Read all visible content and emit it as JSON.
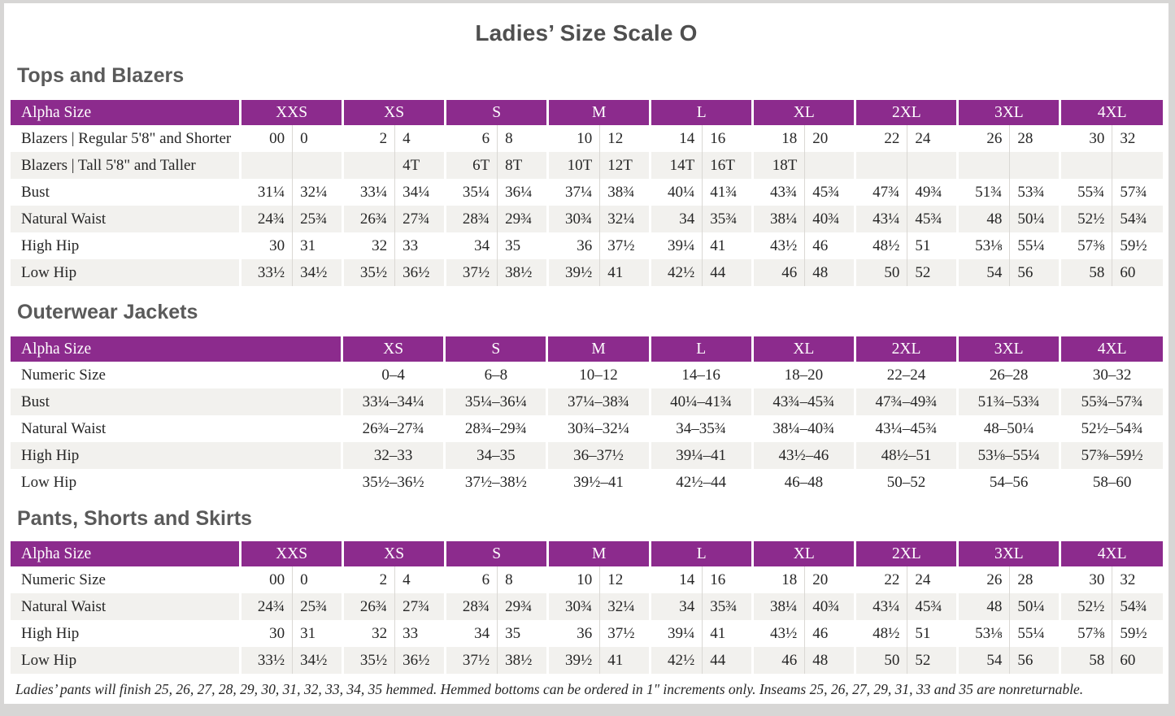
{
  "page": {
    "title": "Ladies’ Size Scale O",
    "footnote": "Ladies’ pants will finish 25, 26, 27, 28, 29, 30, 31, 32, 33, 34, 35 hemmed. Hemmed bottoms can be ordered in 1\" increments only. Inseams 25, 26, 27, 29, 31, 33 and 35 are nonreturnable."
  },
  "colors": {
    "header_purple": "#8c2b8d",
    "row_alt": "#f2f1ee",
    "page_frame": "#d7d6d5",
    "text": "#262626"
  },
  "tables": [
    {
      "id": "tops-and-blazers",
      "section_title": "Tops and Blazers",
      "header_label": "Alpha Size",
      "paired": true,
      "sizes": [
        "XXS",
        "XS",
        "S",
        "M",
        "L",
        "XL",
        "2XL",
        "3XL",
        "4XL"
      ],
      "rows": [
        {
          "label": "Blazers  |  Regular 5'8\" and Shorter",
          "values": [
            [
              "00",
              "0"
            ],
            [
              "2",
              "4"
            ],
            [
              "6",
              "8"
            ],
            [
              "10",
              "12"
            ],
            [
              "14",
              "16"
            ],
            [
              "18",
              "20"
            ],
            [
              "22",
              "24"
            ],
            [
              "26",
              "28"
            ],
            [
              "30",
              "32"
            ]
          ]
        },
        {
          "label": "Blazers  |  Tall 5'8\" and Taller",
          "values": [
            [
              "",
              ""
            ],
            [
              "",
              "4T"
            ],
            [
              "6T",
              "8T"
            ],
            [
              "10T",
              "12T"
            ],
            [
              "14T",
              "16T"
            ],
            [
              "18T",
              ""
            ],
            [
              "",
              ""
            ],
            [
              "",
              ""
            ],
            [
              "",
              ""
            ]
          ]
        },
        {
          "label": "Bust",
          "values": [
            [
              "31¼",
              "32¼"
            ],
            [
              "33¼",
              "34¼"
            ],
            [
              "35¼",
              "36¼"
            ],
            [
              "37¼",
              "38¾"
            ],
            [
              "40¼",
              "41¾"
            ],
            [
              "43¾",
              "45¾"
            ],
            [
              "47¾",
              "49¾"
            ],
            [
              "51¾",
              "53¾"
            ],
            [
              "55¾",
              "57¾"
            ]
          ]
        },
        {
          "label": "Natural Waist",
          "values": [
            [
              "24¾",
              "25¾"
            ],
            [
              "26¾",
              "27¾"
            ],
            [
              "28¾",
              "29¾"
            ],
            [
              "30¾",
              "32¼"
            ],
            [
              "34",
              "35¾"
            ],
            [
              "38¼",
              "40¾"
            ],
            [
              "43¼",
              "45¾"
            ],
            [
              "48",
              "50¼"
            ],
            [
              "52½",
              "54¾"
            ]
          ]
        },
        {
          "label": "High Hip",
          "values": [
            [
              "30",
              "31"
            ],
            [
              "32",
              "33"
            ],
            [
              "34",
              "35"
            ],
            [
              "36",
              "37½"
            ],
            [
              "39¼",
              "41"
            ],
            [
              "43½",
              "46"
            ],
            [
              "48½",
              "51"
            ],
            [
              "53⅛",
              "55¼"
            ],
            [
              "57⅜",
              "59½"
            ]
          ]
        },
        {
          "label": "Low Hip",
          "values": [
            [
              "33½",
              "34½"
            ],
            [
              "35½",
              "36½"
            ],
            [
              "37½",
              "38½"
            ],
            [
              "39½",
              "41"
            ],
            [
              "42½",
              "44"
            ],
            [
              "46",
              "48"
            ],
            [
              "50",
              "52"
            ],
            [
              "54",
              "56"
            ],
            [
              "58",
              "60"
            ]
          ]
        }
      ]
    },
    {
      "id": "outerwear-jackets",
      "section_title": "Outerwear Jackets",
      "header_label": "Alpha Size",
      "paired": false,
      "sizes": [
        "XS",
        "S",
        "M",
        "L",
        "XL",
        "2XL",
        "3XL",
        "4XL"
      ],
      "rows": [
        {
          "label": "Numeric Size",
          "values": [
            "0–4",
            "6–8",
            "10–12",
            "14–16",
            "18–20",
            "22–24",
            "26–28",
            "30–32"
          ]
        },
        {
          "label": "Bust",
          "values": [
            "33¼–34¼",
            "35¼–36¼",
            "37¼–38¾",
            "40¼–41¾",
            "43¾–45¾",
            "47¾–49¾",
            "51¾–53¾",
            "55¾–57¾"
          ]
        },
        {
          "label": "Natural Waist",
          "values": [
            "26¾–27¾",
            "28¾–29¾",
            "30¾–32¼",
            "34–35¾",
            "38¼–40¾",
            "43¼–45¾",
            "48–50¼",
            "52½–54¾"
          ]
        },
        {
          "label": "High Hip",
          "values": [
            "32–33",
            "34–35",
            "36–37½",
            "39¼–41",
            "43½–46",
            "48½–51",
            "53⅛–55¼",
            "57⅜–59½"
          ]
        },
        {
          "label": "Low Hip",
          "values": [
            "35½–36½",
            "37½–38½",
            "39½–41",
            "42½–44",
            "46–48",
            "50–52",
            "54–56",
            "58–60"
          ]
        }
      ]
    },
    {
      "id": "pants-shorts-and-skirts",
      "section_title": "Pants, Shorts and Skirts",
      "header_label": "Alpha Size",
      "paired": true,
      "sizes": [
        "XXS",
        "XS",
        "S",
        "M",
        "L",
        "XL",
        "2XL",
        "3XL",
        "4XL"
      ],
      "rows": [
        {
          "label": "Numeric Size",
          "values": [
            [
              "00",
              "0"
            ],
            [
              "2",
              "4"
            ],
            [
              "6",
              "8"
            ],
            [
              "10",
              "12"
            ],
            [
              "14",
              "16"
            ],
            [
              "18",
              "20"
            ],
            [
              "22",
              "24"
            ],
            [
              "26",
              "28"
            ],
            [
              "30",
              "32"
            ]
          ]
        },
        {
          "label": "Natural Waist",
          "values": [
            [
              "24¾",
              "25¾"
            ],
            [
              "26¾",
              "27¾"
            ],
            [
              "28¾",
              "29¾"
            ],
            [
              "30¾",
              "32¼"
            ],
            [
              "34",
              "35¾"
            ],
            [
              "38¼",
              "40¾"
            ],
            [
              "43¼",
              "45¾"
            ],
            [
              "48",
              "50¼"
            ],
            [
              "52½",
              "54¾"
            ]
          ]
        },
        {
          "label": "High Hip",
          "values": [
            [
              "30",
              "31"
            ],
            [
              "32",
              "33"
            ],
            [
              "34",
              "35"
            ],
            [
              "36",
              "37½"
            ],
            [
              "39¼",
              "41"
            ],
            [
              "43½",
              "46"
            ],
            [
              "48½",
              "51"
            ],
            [
              "53⅛",
              "55¼"
            ],
            [
              "57⅜",
              "59½"
            ]
          ]
        },
        {
          "label": "Low Hip",
          "values": [
            [
              "33½",
              "34½"
            ],
            [
              "35½",
              "36½"
            ],
            [
              "37½",
              "38½"
            ],
            [
              "39½",
              "41"
            ],
            [
              "42½",
              "44"
            ],
            [
              "46",
              "48"
            ],
            [
              "50",
              "52"
            ],
            [
              "54",
              "56"
            ],
            [
              "58",
              "60"
            ]
          ]
        }
      ]
    }
  ]
}
